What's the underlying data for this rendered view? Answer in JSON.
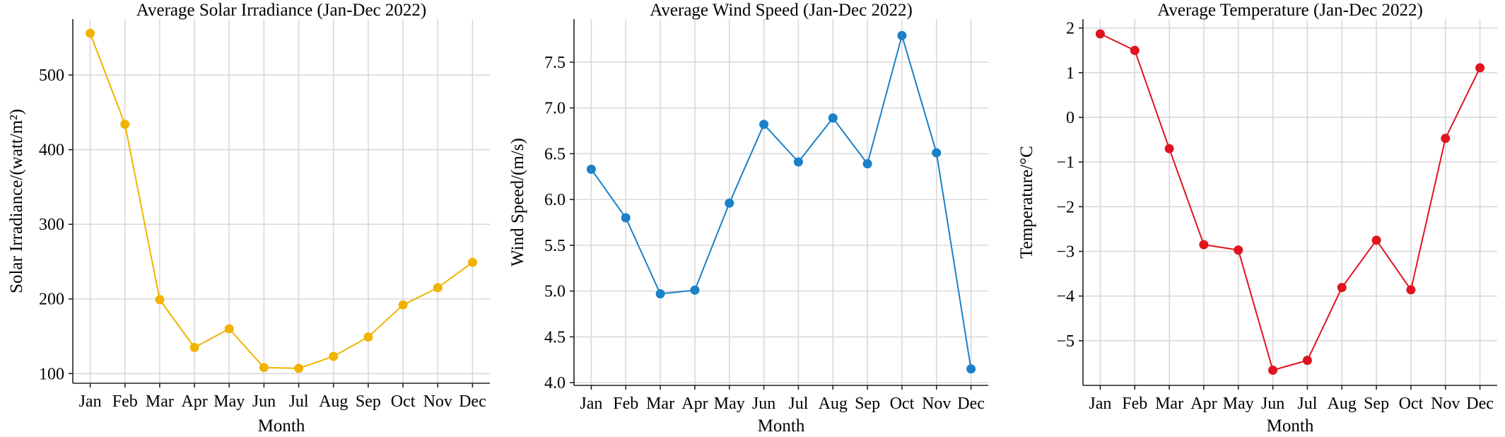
{
  "chart_data": [
    {
      "type": "line",
      "title": "Average Solar Irradiance (Jan-Dec 2022)",
      "xlabel": "Month",
      "ylabel": "Solar Irradiance/(watt/m²)",
      "categories": [
        "Jan",
        "Feb",
        "Mar",
        "Apr",
        "May",
        "Jun",
        "Jul",
        "Aug",
        "Sep",
        "Oct",
        "Nov",
        "Dec"
      ],
      "series": [
        {
          "values": [
            556,
            434,
            199,
            135,
            160,
            108,
            107,
            123,
            149,
            192,
            215,
            249
          ],
          "color": "#f0b400"
        }
      ],
      "ylim": [
        87,
        575
      ],
      "yticks": [
        100,
        200,
        300,
        400,
        500
      ],
      "ytick_labels": [
        "100",
        "200",
        "300",
        "400",
        "500"
      ],
      "grid": true
    },
    {
      "type": "line",
      "title": "Average Wind Speed (Jan-Dec 2022)",
      "xlabel": "Month",
      "ylabel": "Wind Speed/(m/s)",
      "categories": [
        "Jan",
        "Feb",
        "Mar",
        "Apr",
        "May",
        "Jun",
        "Jul",
        "Aug",
        "Sep",
        "Oct",
        "Nov",
        "Dec"
      ],
      "series": [
        {
          "values": [
            6.33,
            5.8,
            4.97,
            5.01,
            5.96,
            6.82,
            6.41,
            6.89,
            6.39,
            7.79,
            6.51,
            4.15
          ],
          "color": "#1a80c8"
        }
      ],
      "ylim": [
        3.97,
        7.97
      ],
      "yticks": [
        4.0,
        4.5,
        5.0,
        5.5,
        6.0,
        6.5,
        7.0,
        7.5
      ],
      "ytick_labels": [
        "4.0",
        "4.5",
        "5.0",
        "5.5",
        "6.0",
        "6.5",
        "7.0",
        "7.5"
      ],
      "grid": true
    },
    {
      "type": "line",
      "title": "Average Temperature (Jan-Dec 2022)",
      "xlabel": "Month",
      "ylabel": "Temperature/°C",
      "categories": [
        "Jan",
        "Feb",
        "Mar",
        "Apr",
        "May",
        "Jun",
        "Jul",
        "Aug",
        "Sep",
        "Oct",
        "Nov",
        "Dec"
      ],
      "series": [
        {
          "values": [
            1.87,
            1.5,
            -0.7,
            -2.85,
            -2.97,
            -5.66,
            -5.44,
            -3.81,
            -2.75,
            -3.86,
            -0.47,
            1.11
          ],
          "color": "#e0141e"
        }
      ],
      "ylim": [
        -6.0,
        2.2
      ],
      "yticks": [
        -5,
        -4,
        -3,
        -2,
        -1,
        0,
        1,
        2
      ],
      "ytick_labels": [
        "−5",
        "−4",
        "−3",
        "−2",
        "−1",
        "0",
        "1",
        "2"
      ],
      "grid": true
    }
  ]
}
